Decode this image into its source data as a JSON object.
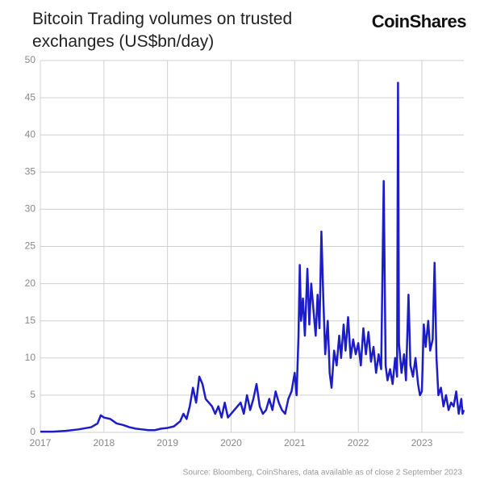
{
  "chart_data": {
    "type": "line",
    "title": "Bitcoin Trading volumes on trusted exchanges (US$bn/day)",
    "brand": "CoinShares",
    "source": "Source: Bloomberg, CoinShares, data available as of close 2 September 2023",
    "xlim": [
      2017,
      2023.66
    ],
    "xticks": [
      2017,
      2018,
      2019,
      2020,
      2021,
      2022,
      2023
    ],
    "ylim": [
      0,
      50
    ],
    "yticks": [
      0,
      5,
      10,
      15,
      20,
      25,
      30,
      35,
      40,
      45,
      50
    ],
    "grid": true,
    "series": [
      {
        "color": "#1c1cc8",
        "x": [
          2017.0,
          2017.2,
          2017.4,
          2017.6,
          2017.8,
          2017.9,
          2017.95,
          2018.0,
          2018.1,
          2018.2,
          2018.3,
          2018.4,
          2018.5,
          2018.6,
          2018.7,
          2018.8,
          2018.9,
          2019.0,
          2019.1,
          2019.2,
          2019.25,
          2019.3,
          2019.35,
          2019.4,
          2019.45,
          2019.5,
          2019.55,
          2019.6,
          2019.7,
          2019.75,
          2019.8,
          2019.85,
          2019.9,
          2019.95,
          2020.0,
          2020.1,
          2020.15,
          2020.2,
          2020.25,
          2020.3,
          2020.35,
          2020.4,
          2020.45,
          2020.5,
          2020.55,
          2020.6,
          2020.65,
          2020.7,
          2020.75,
          2020.8,
          2020.85,
          2020.9,
          2020.95,
          2021.0,
          2021.03,
          2021.06,
          2021.08,
          2021.1,
          2021.13,
          2021.16,
          2021.2,
          2021.23,
          2021.26,
          2021.3,
          2021.33,
          2021.36,
          2021.39,
          2021.42,
          2021.45,
          2021.48,
          2021.52,
          2021.55,
          2021.58,
          2021.62,
          2021.66,
          2021.7,
          2021.73,
          2021.77,
          2021.8,
          2021.84,
          2021.88,
          2021.92,
          2021.96,
          2022.0,
          2022.04,
          2022.08,
          2022.12,
          2022.16,
          2022.2,
          2022.24,
          2022.28,
          2022.32,
          2022.36,
          2022.4,
          2022.43,
          2022.46,
          2022.5,
          2022.54,
          2022.58,
          2022.61,
          2022.625,
          2022.64,
          2022.68,
          2022.72,
          2022.75,
          2022.79,
          2022.82,
          2022.86,
          2022.9,
          2022.94,
          2022.97,
          2023.0,
          2023.03,
          2023.06,
          2023.1,
          2023.13,
          2023.17,
          2023.2,
          2023.23,
          2023.26,
          2023.3,
          2023.34,
          2023.38,
          2023.42,
          2023.46,
          2023.5,
          2023.54,
          2023.58,
          2023.62,
          2023.64,
          2023.66
        ],
        "values": [
          0.1,
          0.1,
          0.2,
          0.4,
          0.7,
          1.2,
          2.3,
          2.0,
          1.8,
          1.2,
          1.0,
          0.7,
          0.5,
          0.4,
          0.3,
          0.3,
          0.5,
          0.6,
          0.8,
          1.5,
          2.5,
          1.8,
          3.5,
          6.0,
          4.0,
          7.5,
          6.5,
          4.5,
          3.5,
          2.5,
          3.5,
          2.0,
          4.0,
          2.0,
          2.5,
          3.5,
          4.0,
          2.5,
          5.0,
          3.0,
          4.5,
          6.5,
          3.5,
          2.5,
          3.0,
          4.5,
          3.0,
          5.5,
          4.0,
          3.0,
          2.5,
          4.5,
          5.5,
          8.0,
          5.0,
          13.0,
          22.5,
          15.0,
          18.0,
          13.0,
          22.0,
          14.5,
          20.0,
          16.0,
          13.0,
          18.5,
          14.0,
          27.0,
          18.0,
          10.5,
          15.0,
          8.0,
          6.0,
          11.0,
          9.0,
          13.0,
          10.0,
          14.5,
          11.0,
          15.5,
          10.0,
          12.5,
          10.5,
          12.0,
          9.0,
          14.0,
          10.5,
          13.5,
          9.5,
          11.5,
          8.0,
          10.5,
          8.5,
          33.8,
          9.0,
          7.0,
          8.5,
          6.5,
          10.0,
          7.5,
          47.0,
          12.0,
          8.0,
          10.5,
          7.0,
          18.5,
          9.0,
          7.5,
          10.0,
          6.5,
          5.0,
          5.5,
          14.5,
          11.5,
          15.0,
          11.0,
          12.5,
          22.8,
          10.0,
          5.0,
          6.0,
          3.5,
          5.0,
          3.0,
          4.0,
          3.5,
          5.5,
          2.5,
          4.5,
          2.5,
          3.0
        ]
      }
    ]
  }
}
